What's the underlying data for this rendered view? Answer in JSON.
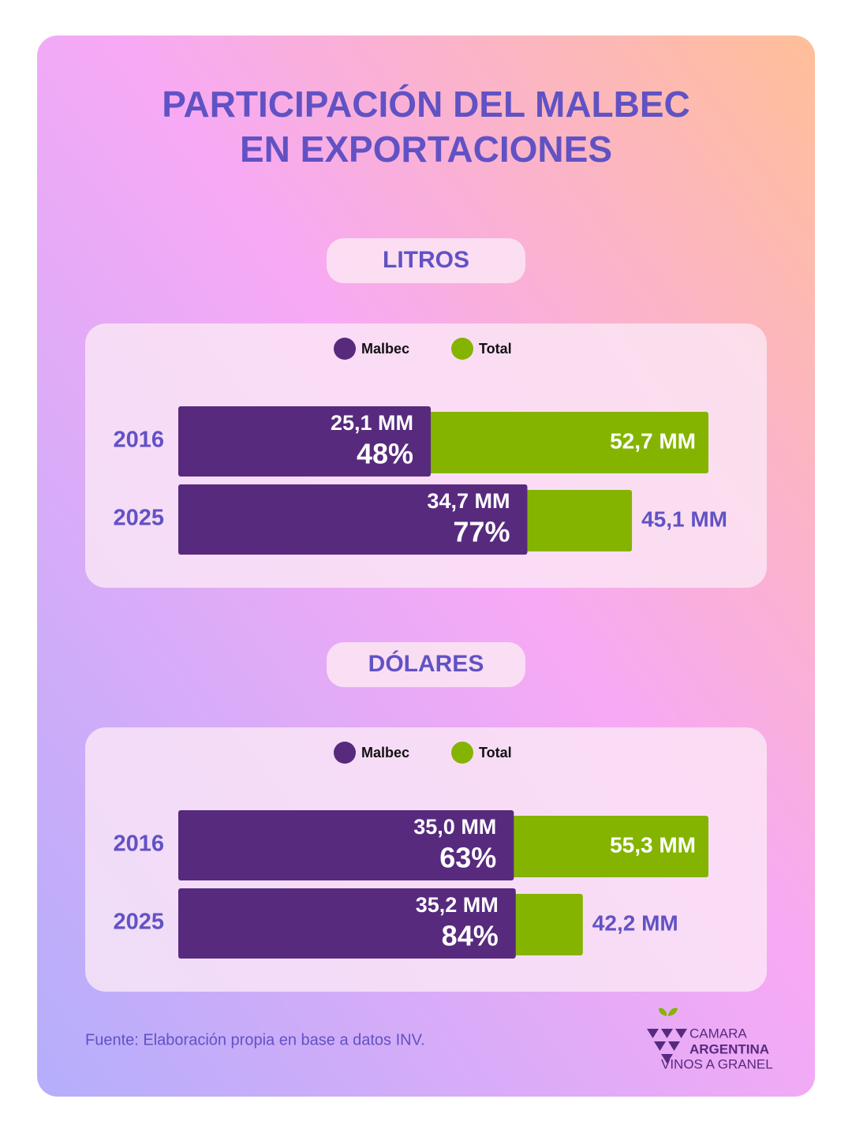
{
  "title": [
    "PARTICIPACIÓN DEL MALBEC",
    "EN EXPORTACIONES"
  ],
  "chart_data": [
    {
      "type": "bar",
      "title": "LITROS",
      "categories": [
        "2016",
        "2025"
      ],
      "series": [
        {
          "name": "Malbec",
          "color": "#572a7e",
          "values": [
            25.1,
            34.7
          ],
          "value_labels": [
            "25,1 MM",
            "34,7 MM"
          ],
          "percent": [
            48,
            77
          ],
          "percent_labels": [
            "48%",
            "77%"
          ]
        },
        {
          "name": "Total",
          "color": "#84b400",
          "values": [
            52.7,
            45.1
          ],
          "value_labels": [
            "52,7 MM",
            "45,1 MM"
          ]
        }
      ]
    },
    {
      "type": "bar",
      "title": "DÓLARES",
      "categories": [
        "2016",
        "2025"
      ],
      "series": [
        {
          "name": "Malbec",
          "color": "#572a7e",
          "values": [
            35.0,
            35.2
          ],
          "value_labels": [
            "35,0 MM",
            "35,2 MM"
          ],
          "percent": [
            63,
            84
          ],
          "percent_labels": [
            "63%",
            "84%"
          ]
        },
        {
          "name": "Total",
          "color": "#84b400",
          "values": [
            55.3,
            42.2
          ],
          "value_labels": [
            "55,3 MM",
            "42,2 MM"
          ]
        }
      ]
    }
  ],
  "source": "Fuente: Elaboración propia en base a datos INV.",
  "logo": [
    "CAMARA",
    "ARGENTINA",
    "VINOS A GRANEL"
  ]
}
